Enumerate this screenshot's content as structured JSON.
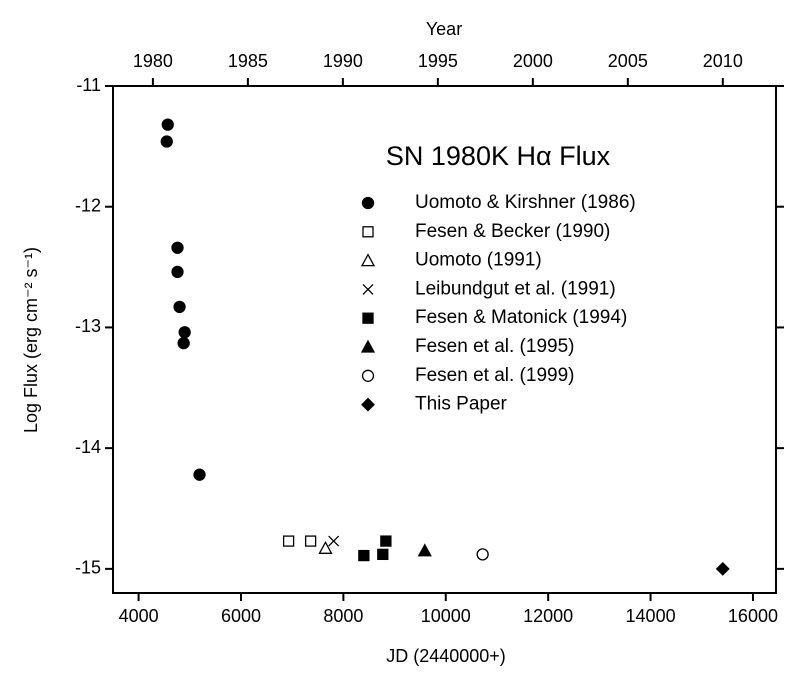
{
  "chart_data": {
    "type": "scatter",
    "title": "SN 1980K Hα Flux",
    "x_label": "JD (2440000+)",
    "y_label": "Log Flux (erg cm⁻² s⁻¹)",
    "x2_label": "Year",
    "xlim": [
      3500,
      16450
    ],
    "xticks": [
      4000,
      6000,
      8000,
      10000,
      12000,
      14000,
      16000
    ],
    "ylim": [
      -15.2,
      -11
    ],
    "yticks": [
      -11,
      -12,
      -13,
      -14,
      -15
    ],
    "x2lim": [
      1977.9,
      2012.8
    ],
    "x2ticks": [
      1980,
      1985,
      1990,
      1995,
      2000,
      2005,
      2010
    ],
    "series": [
      {
        "name": "Uomoto & Kirshner (1986)",
        "color": "#000000",
        "marker": "circle",
        "filled": true,
        "x": [
          4570,
          4550,
          4760,
          4760,
          4800,
          4900,
          4880,
          5190
        ],
        "values": [
          -11.32,
          -11.46,
          -12.34,
          -12.54,
          -12.83,
          -13.04,
          -13.13,
          -14.22
        ]
      },
      {
        "name": "Fesen & Becker (1990)",
        "color": "#000000",
        "marker": "square",
        "filled": false,
        "x": [
          6930,
          7360
        ],
        "values": [
          -14.77,
          -14.77
        ]
      },
      {
        "name": "Uomoto (1991)",
        "color": "#000000",
        "marker": "triangle",
        "filled": false,
        "x": [
          7650
        ],
        "values": [
          -14.83
        ]
      },
      {
        "name": "Leibundgut et al. (1991)",
        "color": "#000000",
        "marker": "x",
        "filled": false,
        "x": [
          7810
        ],
        "values": [
          -14.77
        ]
      },
      {
        "name": "Fesen & Matonick (1994)",
        "color": "#000000",
        "marker": "square",
        "filled": true,
        "x": [
          8400,
          8770,
          8830
        ],
        "values": [
          -14.89,
          -14.88,
          -14.77
        ]
      },
      {
        "name": "Fesen et al. (1995)",
        "color": "#000000",
        "marker": "triangle",
        "filled": true,
        "x": [
          9590
        ],
        "values": [
          -14.85
        ]
      },
      {
        "name": "Fesen et al. (1999)",
        "color": "#000000",
        "marker": "circle",
        "filled": false,
        "x": [
          10720
        ],
        "values": [
          -14.88
        ]
      },
      {
        "name": "This Paper",
        "color": "#000000",
        "marker": "diamond",
        "filled": true,
        "x": [
          15410
        ],
        "values": [
          -15.0
        ]
      }
    ]
  }
}
